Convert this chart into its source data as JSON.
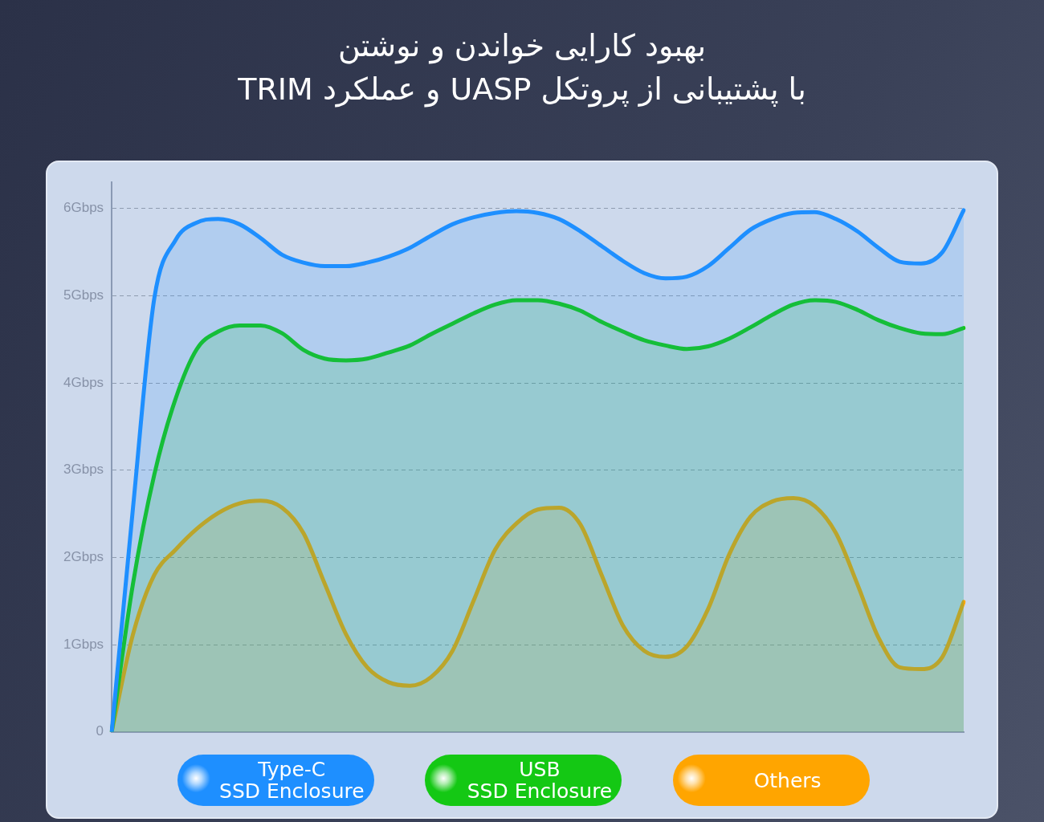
{
  "chart_data": {
    "type": "area",
    "title": "بهبود کارایی خواندن و نوشتن\nبا پشتیبانی از پروتکل UASP و عملکرد TRIM",
    "categories": [
      null,
      null,
      null,
      null,
      null,
      null,
      null,
      null,
      null,
      null,
      null,
      null,
      null,
      null,
      null,
      null,
      null,
      null,
      null,
      null,
      null,
      null,
      null,
      null,
      null,
      null,
      null,
      null,
      null,
      null,
      null,
      null,
      null,
      null,
      null,
      null,
      null,
      null,
      null,
      null,
      null
    ],
    "series": [
      {
        "name": "Type-C\nSSD Enclosure",
        "color": "#1e8fff",
        "values": [
          0,
          2.57,
          4.97,
          5.64,
          5.84,
          5.88,
          5.82,
          5.66,
          5.47,
          5.38,
          5.34,
          5.34,
          5.38,
          5.45,
          5.55,
          5.69,
          5.82,
          5.9,
          5.95,
          5.97,
          5.95,
          5.88,
          5.74,
          5.57,
          5.4,
          5.26,
          5.2,
          5.22,
          5.34,
          5.55,
          5.76,
          5.88,
          5.95,
          5.96,
          5.88,
          5.74,
          5.55,
          5.39,
          5.37,
          5.5,
          5.98
        ]
      },
      {
        "name": "USB\nSSD Enclosure",
        "color": "#14c814",
        "values": [
          0,
          1.7,
          2.95,
          3.82,
          4.39,
          4.59,
          4.66,
          4.66,
          4.57,
          4.38,
          4.28,
          4.26,
          4.28,
          4.35,
          4.43,
          4.56,
          4.68,
          4.8,
          4.9,
          4.95,
          4.95,
          4.91,
          4.83,
          4.7,
          4.59,
          4.49,
          4.43,
          4.39,
          4.42,
          4.51,
          4.64,
          4.78,
          4.9,
          4.95,
          4.93,
          4.84,
          4.72,
          4.63,
          4.57,
          4.56,
          4.63
        ]
      },
      {
        "name": "Others",
        "color": "#ffa500",
        "values": [
          0,
          1.12,
          1.8,
          2.09,
          2.33,
          2.51,
          2.62,
          2.65,
          2.57,
          2.28,
          1.7,
          1.12,
          0.74,
          0.57,
          0.53,
          0.63,
          0.93,
          1.51,
          2.09,
          2.39,
          2.55,
          2.57,
          2.38,
          1.8,
          1.22,
          0.93,
          0.86,
          0.98,
          1.41,
          2.04,
          2.47,
          2.64,
          2.68,
          2.59,
          2.28,
          1.7,
          1.08,
          0.74,
          0.72,
          0.86,
          1.49
        ]
      }
    ],
    "ylim": [
      0,
      6.3
    ],
    "yticks": [
      0,
      {
        "value": 1,
        "label": "1Gbps"
      },
      {
        "value": 2,
        "label": "2Gbps"
      },
      {
        "value": 3,
        "label": "3Gbps"
      },
      {
        "value": 4,
        "label": "4Gbps"
      },
      {
        "value": 5,
        "label": "5Gbps"
      },
      {
        "value": 6,
        "label": "6Gbps"
      }
    ],
    "grid": "y",
    "line_style": "solid",
    "marker": "none",
    "legend": "bottom",
    "tick_labels": "y"
  }
}
